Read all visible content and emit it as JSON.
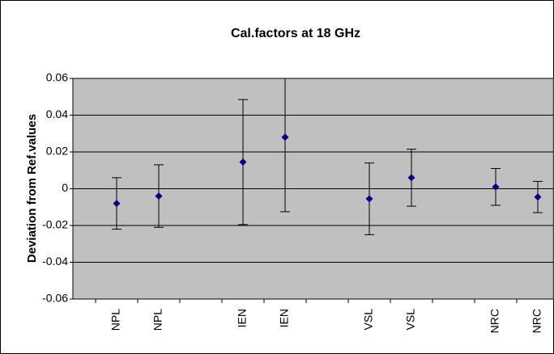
{
  "chart_data": {
    "type": "errorbar",
    "title": "Cal.factors at 18 GHz",
    "y_label": "Deviation from Ref.values",
    "categories": [
      "NPL",
      "NPL",
      null,
      "IEN",
      "IEN",
      null,
      "VSL",
      "VSL",
      null,
      "NRC",
      "NRC"
    ],
    "values": [
      -0.008,
      -0.004,
      null,
      0.0145,
      0.028,
      null,
      -0.0055,
      0.006,
      null,
      0.001,
      -0.0045
    ],
    "errors": [
      0.014,
      0.017,
      null,
      0.034,
      0.0405,
      null,
      0.0195,
      0.0155,
      null,
      0.01,
      0.0085
    ],
    "color": "#000080",
    "ylim": [
      -0.06,
      0.06
    ],
    "yticks": [
      -0.06,
      -0.04,
      -0.02,
      0,
      0.02,
      0.04,
      0.06
    ],
    "grid": true
  }
}
